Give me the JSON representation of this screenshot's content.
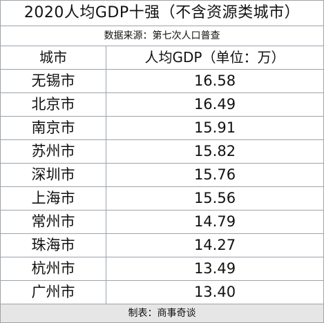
{
  "title": "2020人均GDP十强（不含资源类城市）",
  "source": "数据来源：第七次人口普查",
  "headers": {
    "city": "城市",
    "value": "人均GDP（单位：万）"
  },
  "rows": [
    {
      "city": "无锡市",
      "value": "16.58"
    },
    {
      "city": "北京市",
      "value": "16.49"
    },
    {
      "city": "南京市",
      "value": "15.91"
    },
    {
      "city": "苏州市",
      "value": "15.82"
    },
    {
      "city": "深圳市",
      "value": "15.76"
    },
    {
      "city": "上海市",
      "value": "15.56"
    },
    {
      "city": "常州市",
      "value": "14.79"
    },
    {
      "city": "珠海市",
      "value": "14.27"
    },
    {
      "city": "杭州市",
      "value": "13.49"
    },
    {
      "city": "广州市",
      "value": "13.40"
    }
  ],
  "footer": "制表：商事奇谈",
  "colors": {
    "border": "#9aa3ab",
    "footer_background": "#e6e6e6",
    "text": "#111111"
  }
}
